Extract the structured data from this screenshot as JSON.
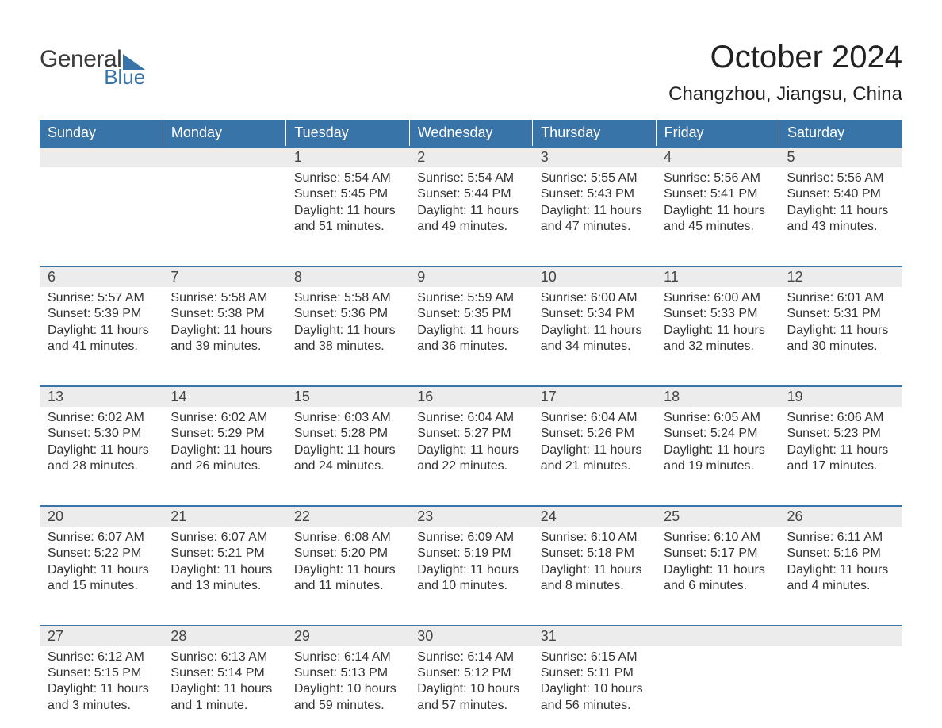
{
  "logo": {
    "word1": "General",
    "word2": "Blue"
  },
  "title": "October 2024",
  "location": "Changzhou, Jiangsu, China",
  "colors": {
    "header_bg": "#3874a8",
    "header_text": "#ffffff",
    "daynum_bg": "#ececec",
    "row_border": "#3874a8",
    "body_text": "#333333",
    "logo_blue": "#3874a8",
    "background": "#ffffff"
  },
  "fonts": {
    "title_size_pt": 30,
    "location_size_pt": 18,
    "header_size_pt": 13,
    "body_size_pt": 12
  },
  "days_of_week": [
    "Sunday",
    "Monday",
    "Tuesday",
    "Wednesday",
    "Thursday",
    "Friday",
    "Saturday"
  ],
  "weeks": [
    [
      null,
      null,
      {
        "n": "1",
        "sunrise": "5:54 AM",
        "sunset": "5:45 PM",
        "daylight": "11 hours and 51 minutes."
      },
      {
        "n": "2",
        "sunrise": "5:54 AM",
        "sunset": "5:44 PM",
        "daylight": "11 hours and 49 minutes."
      },
      {
        "n": "3",
        "sunrise": "5:55 AM",
        "sunset": "5:43 PM",
        "daylight": "11 hours and 47 minutes."
      },
      {
        "n": "4",
        "sunrise": "5:56 AM",
        "sunset": "5:41 PM",
        "daylight": "11 hours and 45 minutes."
      },
      {
        "n": "5",
        "sunrise": "5:56 AM",
        "sunset": "5:40 PM",
        "daylight": "11 hours and 43 minutes."
      }
    ],
    [
      {
        "n": "6",
        "sunrise": "5:57 AM",
        "sunset": "5:39 PM",
        "daylight": "11 hours and 41 minutes."
      },
      {
        "n": "7",
        "sunrise": "5:58 AM",
        "sunset": "5:38 PM",
        "daylight": "11 hours and 39 minutes."
      },
      {
        "n": "8",
        "sunrise": "5:58 AM",
        "sunset": "5:36 PM",
        "daylight": "11 hours and 38 minutes."
      },
      {
        "n": "9",
        "sunrise": "5:59 AM",
        "sunset": "5:35 PM",
        "daylight": "11 hours and 36 minutes."
      },
      {
        "n": "10",
        "sunrise": "6:00 AM",
        "sunset": "5:34 PM",
        "daylight": "11 hours and 34 minutes."
      },
      {
        "n": "11",
        "sunrise": "6:00 AM",
        "sunset": "5:33 PM",
        "daylight": "11 hours and 32 minutes."
      },
      {
        "n": "12",
        "sunrise": "6:01 AM",
        "sunset": "5:31 PM",
        "daylight": "11 hours and 30 minutes."
      }
    ],
    [
      {
        "n": "13",
        "sunrise": "6:02 AM",
        "sunset": "5:30 PM",
        "daylight": "11 hours and 28 minutes."
      },
      {
        "n": "14",
        "sunrise": "6:02 AM",
        "sunset": "5:29 PM",
        "daylight": "11 hours and 26 minutes."
      },
      {
        "n": "15",
        "sunrise": "6:03 AM",
        "sunset": "5:28 PM",
        "daylight": "11 hours and 24 minutes."
      },
      {
        "n": "16",
        "sunrise": "6:04 AM",
        "sunset": "5:27 PM",
        "daylight": "11 hours and 22 minutes."
      },
      {
        "n": "17",
        "sunrise": "6:04 AM",
        "sunset": "5:26 PM",
        "daylight": "11 hours and 21 minutes."
      },
      {
        "n": "18",
        "sunrise": "6:05 AM",
        "sunset": "5:24 PM",
        "daylight": "11 hours and 19 minutes."
      },
      {
        "n": "19",
        "sunrise": "6:06 AM",
        "sunset": "5:23 PM",
        "daylight": "11 hours and 17 minutes."
      }
    ],
    [
      {
        "n": "20",
        "sunrise": "6:07 AM",
        "sunset": "5:22 PM",
        "daylight": "11 hours and 15 minutes."
      },
      {
        "n": "21",
        "sunrise": "6:07 AM",
        "sunset": "5:21 PM",
        "daylight": "11 hours and 13 minutes."
      },
      {
        "n": "22",
        "sunrise": "6:08 AM",
        "sunset": "5:20 PM",
        "daylight": "11 hours and 11 minutes."
      },
      {
        "n": "23",
        "sunrise": "6:09 AM",
        "sunset": "5:19 PM",
        "daylight": "11 hours and 10 minutes."
      },
      {
        "n": "24",
        "sunrise": "6:10 AM",
        "sunset": "5:18 PM",
        "daylight": "11 hours and 8 minutes."
      },
      {
        "n": "25",
        "sunrise": "6:10 AM",
        "sunset": "5:17 PM",
        "daylight": "11 hours and 6 minutes."
      },
      {
        "n": "26",
        "sunrise": "6:11 AM",
        "sunset": "5:16 PM",
        "daylight": "11 hours and 4 minutes."
      }
    ],
    [
      {
        "n": "27",
        "sunrise": "6:12 AM",
        "sunset": "5:15 PM",
        "daylight": "11 hours and 3 minutes."
      },
      {
        "n": "28",
        "sunrise": "6:13 AM",
        "sunset": "5:14 PM",
        "daylight": "11 hours and 1 minute."
      },
      {
        "n": "29",
        "sunrise": "6:14 AM",
        "sunset": "5:13 PM",
        "daylight": "10 hours and 59 minutes."
      },
      {
        "n": "30",
        "sunrise": "6:14 AM",
        "sunset": "5:12 PM",
        "daylight": "10 hours and 57 minutes."
      },
      {
        "n": "31",
        "sunrise": "6:15 AM",
        "sunset": "5:11 PM",
        "daylight": "10 hours and 56 minutes."
      },
      null,
      null
    ]
  ],
  "labels": {
    "sunrise": "Sunrise:",
    "sunset": "Sunset:",
    "daylight": "Daylight:"
  }
}
